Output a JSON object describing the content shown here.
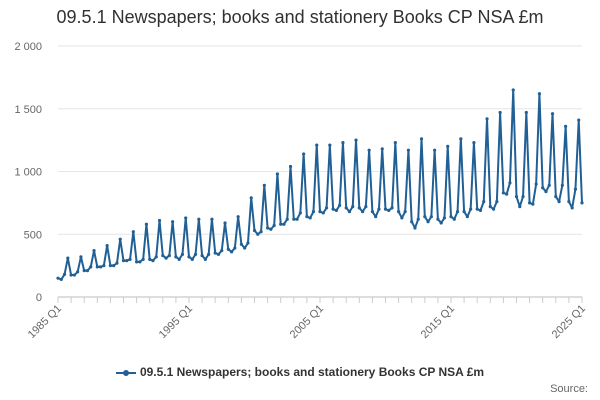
{
  "chart_data": {
    "type": "line",
    "title": "09.5.1 Newspapers; books and stationery Books CP NSA £m",
    "xlabel": "",
    "ylabel": "",
    "ylim": [
      0,
      2000
    ],
    "yticks": [
      0,
      500,
      1000,
      1500,
      2000
    ],
    "ytick_labels": [
      "0",
      "500",
      "1 000",
      "1 500",
      "2 000"
    ],
    "xtick_labels": [
      "1985 Q1",
      "1995 Q1",
      "2005 Q1",
      "2015 Q1",
      "2025 Q1"
    ],
    "x_range": [
      "1985 Q1",
      "2025 Q1"
    ],
    "legend": "bottom",
    "grid": true,
    "series": [
      {
        "name": "09.5.1 Newspapers; books and stationery Books CP NSA £m",
        "color": "#206095",
        "start": "1985 Q1",
        "frequency": "quarterly",
        "values": [
          150,
          140,
          180,
          310,
          175,
          175,
          200,
          320,
          210,
          210,
          240,
          370,
          240,
          240,
          250,
          410,
          250,
          250,
          270,
          460,
          290,
          290,
          300,
          520,
          280,
          280,
          300,
          580,
          300,
          290,
          320,
          610,
          330,
          310,
          330,
          600,
          320,
          300,
          340,
          630,
          320,
          300,
          340,
          620,
          330,
          300,
          340,
          620,
          350,
          340,
          370,
          590,
          380,
          360,
          390,
          640,
          420,
          390,
          430,
          790,
          530,
          500,
          520,
          890,
          550,
          540,
          570,
          980,
          580,
          580,
          620,
          1040,
          620,
          620,
          670,
          1140,
          640,
          630,
          680,
          1210,
          680,
          670,
          710,
          1210,
          700,
          690,
          730,
          1230,
          710,
          680,
          720,
          1250,
          710,
          680,
          720,
          1170,
          680,
          640,
          700,
          1180,
          700,
          690,
          710,
          1230,
          680,
          630,
          680,
          1170,
          600,
          550,
          620,
          1260,
          640,
          600,
          640,
          1170,
          620,
          590,
          630,
          1200,
          640,
          620,
          680,
          1260,
          680,
          640,
          700,
          1230,
          700,
          690,
          760,
          1420,
          720,
          700,
          760,
          1470,
          830,
          820,
          910,
          1650,
          800,
          720,
          800,
          1470,
          750,
          740,
          900,
          1620,
          870,
          840,
          890,
          1460,
          800,
          760,
          890,
          1360,
          760,
          710,
          860,
          1410,
          750
        ]
      }
    ],
    "credit": "Source:"
  }
}
